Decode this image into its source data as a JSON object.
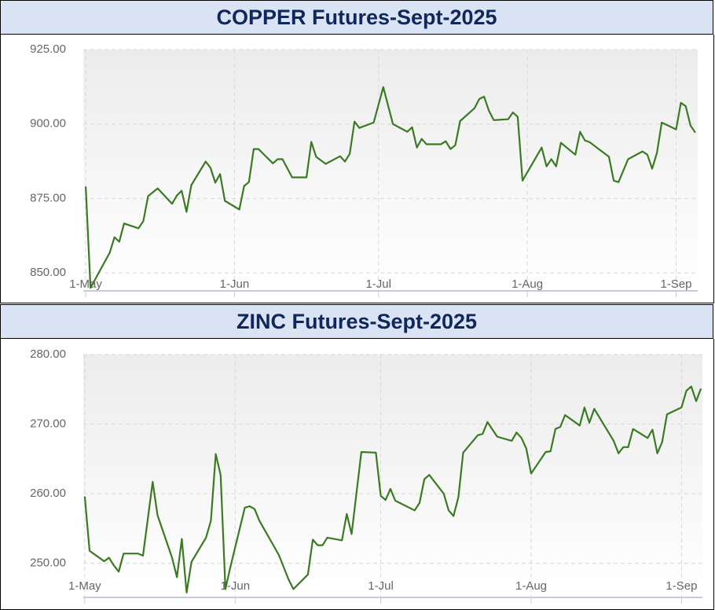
{
  "chart_data": [
    {
      "type": "line",
      "title": "COPPER Futures-Sept-2025",
      "color": "#3b7a23",
      "grid": true,
      "xlim": [
        -0.5,
        127.5
      ],
      "ylim": [
        844,
        925
      ],
      "xticks": [
        {
          "value": 0,
          "label": "1-May"
        },
        {
          "value": 31,
          "label": "1-Jun"
        },
        {
          "value": 61,
          "label": "1-Jul"
        },
        {
          "value": 92,
          "label": "1-Aug"
        },
        {
          "value": 123,
          "label": "1-Sep"
        }
      ],
      "yticks": [
        {
          "value": 850,
          "label": "850.00"
        },
        {
          "value": 875,
          "label": "875.00"
        },
        {
          "value": 900,
          "label": "900.00"
        },
        {
          "value": 925,
          "label": "925.00"
        }
      ],
      "x": [
        0,
        1,
        5,
        6,
        7,
        8,
        11,
        12,
        13,
        15,
        18,
        19,
        20,
        21,
        22,
        25,
        26,
        27,
        28,
        29,
        32,
        33,
        34,
        35,
        36,
        39,
        40,
        41,
        43,
        46,
        47,
        48,
        50,
        53,
        54,
        55,
        56,
        57,
        60,
        62,
        64,
        67,
        68,
        69,
        70,
        71,
        74,
        75,
        76,
        77,
        78,
        81,
        82,
        83,
        84,
        85,
        88,
        89,
        90,
        91,
        95,
        96,
        97,
        98,
        99,
        102,
        103,
        104,
        105,
        109,
        110,
        111,
        113,
        116,
        117,
        118,
        119,
        120,
        123,
        124,
        125,
        126,
        127
      ],
      "values": [
        879,
        845,
        856.8,
        862,
        860.5,
        866.6,
        865,
        867.4,
        875.8,
        878.4,
        873.2,
        876,
        877.6,
        870.5,
        879.5,
        887.4,
        885.3,
        880.3,
        883.2,
        874.2,
        871.3,
        879.2,
        880.5,
        891.6,
        891.6,
        886.8,
        888.2,
        888.2,
        882.1,
        882.1,
        894,
        889,
        886.6,
        889.2,
        887.4,
        890,
        900.8,
        898.7,
        900.5,
        912.4,
        900,
        897.4,
        898.9,
        892.1,
        895,
        893.2,
        893.2,
        894.2,
        891.6,
        892.9,
        901,
        905.3,
        908.4,
        909.2,
        904.5,
        901.3,
        901.6,
        903.9,
        902.4,
        881,
        892.1,
        885.8,
        888.2,
        885.8,
        893.7,
        889.7,
        897.4,
        894.5,
        893.9,
        889,
        881,
        880.5,
        888.2,
        890.8,
        889.7,
        885,
        890.3,
        900.5,
        898.2,
        907.1,
        906,
        899.5,
        897.1
      ]
    },
    {
      "type": "line",
      "title": "ZINC Futures-Sept-2025",
      "color": "#3b7a23",
      "grid": true,
      "xlim": [
        -0.3,
        127.3
      ],
      "ylim": [
        245.1,
        280
      ],
      "xticks": [
        {
          "value": 0,
          "label": "1-May"
        },
        {
          "value": 31,
          "label": "1-Jun"
        },
        {
          "value": 61,
          "label": "1-Jul"
        },
        {
          "value": 92,
          "label": "1-Aug"
        },
        {
          "value": 123,
          "label": "1-Sep"
        }
      ],
      "yticks": [
        {
          "value": 250,
          "label": "250.00"
        },
        {
          "value": 260,
          "label": "260.00"
        },
        {
          "value": 270,
          "label": "270.00"
        },
        {
          "value": 280,
          "label": "280.00"
        }
      ],
      "x": [
        0,
        1,
        4,
        5,
        6,
        7,
        8,
        11,
        12,
        14,
        15,
        18,
        19,
        20,
        21,
        22,
        25,
        26,
        27,
        28,
        29,
        30,
        33,
        34,
        35,
        36,
        40,
        42,
        43,
        46,
        47,
        48,
        49,
        50,
        53,
        54,
        55,
        57,
        60,
        61,
        62,
        63,
        64,
        68,
        69,
        70,
        71,
        74,
        75,
        76,
        77,
        78,
        81,
        82,
        83,
        85,
        88,
        89,
        90,
        91,
        92,
        95,
        96,
        97,
        98,
        99,
        102,
        103,
        104,
        105,
        109,
        110,
        111,
        112,
        113,
        116,
        117,
        118,
        119,
        120,
        123,
        124,
        125,
        126,
        127
      ],
      "values": [
        259.6,
        251.8,
        250.3,
        250.8,
        249.7,
        248.8,
        251.4,
        251.4,
        251.1,
        261.7,
        256.9,
        250.8,
        248,
        253.5,
        245.8,
        250.2,
        253.7,
        256.1,
        265.7,
        262.7,
        246.3,
        249.4,
        258,
        258.2,
        257.8,
        256.1,
        251.2,
        247.7,
        246.3,
        248.4,
        253.4,
        252.6,
        252.6,
        253.7,
        253.3,
        257.1,
        254.2,
        266,
        265.9,
        259.7,
        259.1,
        260.7,
        259,
        257.6,
        258.7,
        262.1,
        262.7,
        260,
        257.6,
        256.8,
        259.5,
        265.9,
        268.4,
        268.6,
        270.3,
        268.2,
        267.6,
        268.8,
        268,
        266.5,
        262.9,
        266,
        266.1,
        269.3,
        269.6,
        271.3,
        269.8,
        272.4,
        270.2,
        272.2,
        267.6,
        265.8,
        266.7,
        266.7,
        269.3,
        268,
        269.2,
        265.8,
        267.4,
        271.4,
        272.4,
        274.8,
        275.4,
        273.3,
        275.1
      ]
    }
  ]
}
